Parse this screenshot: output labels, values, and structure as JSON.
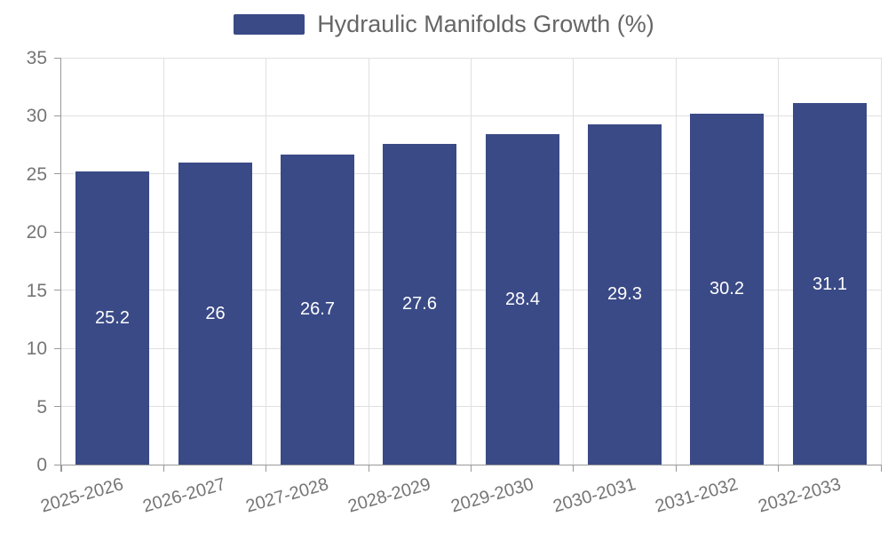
{
  "legend": {
    "label": "Hydraulic Manifolds Growth (%)"
  },
  "colors": {
    "bar": "#3A4A86",
    "grid": "#E0E0E0",
    "axis": "#999999",
    "axis_text": "#757575",
    "legend_text": "#666666",
    "value_label_text": "#FFFFFF",
    "background": "#FFFFFF"
  },
  "chart_data": {
    "type": "bar",
    "title": "",
    "xlabel": "",
    "ylabel": "",
    "categories": [
      "2025-2026",
      "2026-2027",
      "2027-2028",
      "2028-2029",
      "2029-2030",
      "2030-2031",
      "2031-2032",
      "2032-2033"
    ],
    "values": [
      25.2,
      26,
      26.7,
      27.6,
      28.4,
      29.3,
      30.2,
      31.1
    ],
    "value_labels": [
      "25.2",
      "26",
      "26.7",
      "27.6",
      "28.4",
      "29.3",
      "30.2",
      "31.1"
    ],
    "series_name": "Hydraulic Manifolds Growth (%)",
    "ylim": [
      0,
      35
    ],
    "ytick_step": 5,
    "ytick_labels": [
      "0",
      "5",
      "10",
      "15",
      "20",
      "25",
      "30",
      "35"
    ],
    "grid": "both",
    "legend_position": "top-center",
    "value_label_position": "inside-center",
    "xtick_label_rotation_deg": -16
  }
}
